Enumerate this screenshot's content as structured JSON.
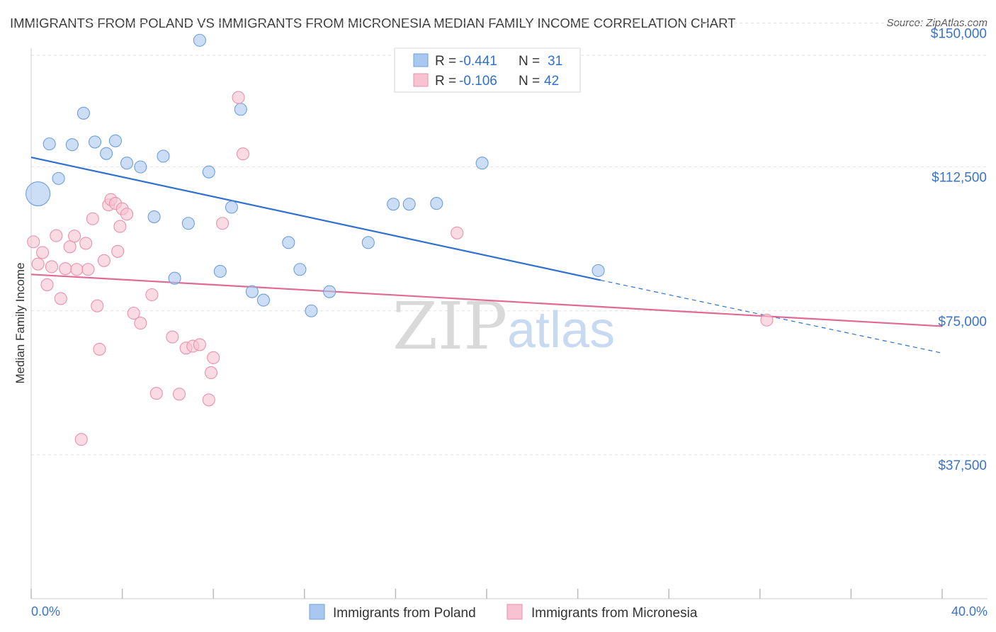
{
  "title": "IMMIGRANTS FROM POLAND VS IMMIGRANTS FROM MICRONESIA MEDIAN FAMILY INCOME CORRELATION CHART",
  "source": "Source: ZipAtlas.com",
  "watermark": {
    "zip": "ZIP",
    "atlas": "atlas"
  },
  "legend_stats": [
    {
      "r_label": "R = ",
      "r_value": "-0.441",
      "n_label": "N = ",
      "n_value": "31"
    },
    {
      "r_label": "R = ",
      "r_value": "-0.106",
      "n_label": "N = ",
      "n_value": "42"
    }
  ],
  "chart_data": {
    "type": "scatter",
    "title": "IMMIGRANTS FROM POLAND VS IMMIGRANTS FROM MICRONESIA MEDIAN FAMILY INCOME CORRELATION CHART",
    "xlabel": "",
    "ylabel": "Median Family Income",
    "xlim": [
      0,
      40
    ],
    "ylim": [
      0,
      156000
    ],
    "x_tick_labels": [
      "0.0%",
      "40.0%"
    ],
    "y_ticks": [
      37500,
      75000,
      112500,
      150000
    ],
    "y_tick_labels": [
      "$37,500",
      "$75,000",
      "$112,500",
      "$150,000"
    ],
    "grid": true,
    "legend_position": "top-center",
    "series": [
      {
        "name": "Immigrants from Poland",
        "color": "#a9c8f0",
        "edge_color": "#6f9fdc",
        "line_color": "#2f70d0",
        "r": -0.441,
        "n": 31,
        "trend": {
          "x0": 0,
          "y0": 115000,
          "x1": 25,
          "y1": 83000,
          "dash_to_x": 40,
          "dash_to_y": 64000
        },
        "points": [
          {
            "x": 0.3,
            "y": 105500,
            "big": true
          },
          {
            "x": 0.8,
            "y": 118500
          },
          {
            "x": 1.2,
            "y": 109500
          },
          {
            "x": 1.8,
            "y": 118300
          },
          {
            "x": 2.3,
            "y": 126500
          },
          {
            "x": 2.8,
            "y": 119000
          },
          {
            "x": 3.3,
            "y": 116000
          },
          {
            "x": 3.7,
            "y": 119300
          },
          {
            "x": 4.2,
            "y": 113500
          },
          {
            "x": 4.8,
            "y": 112500
          },
          {
            "x": 5.4,
            "y": 99500
          },
          {
            "x": 5.8,
            "y": 115300
          },
          {
            "x": 6.3,
            "y": 83500
          },
          {
            "x": 6.9,
            "y": 97800
          },
          {
            "x": 7.4,
            "y": 145500
          },
          {
            "x": 7.8,
            "y": 111200
          },
          {
            "x": 8.3,
            "y": 85300
          },
          {
            "x": 8.8,
            "y": 102000
          },
          {
            "x": 9.2,
            "y": 127500
          },
          {
            "x": 9.7,
            "y": 80000
          },
          {
            "x": 10.2,
            "y": 77800
          },
          {
            "x": 11.3,
            "y": 92800
          },
          {
            "x": 11.8,
            "y": 85800
          },
          {
            "x": 12.3,
            "y": 75000
          },
          {
            "x": 13.1,
            "y": 80000
          },
          {
            "x": 14.8,
            "y": 92800
          },
          {
            "x": 15.9,
            "y": 102800
          },
          {
            "x": 16.6,
            "y": 102800
          },
          {
            "x": 17.8,
            "y": 103000
          },
          {
            "x": 19.8,
            "y": 113500
          },
          {
            "x": 24.9,
            "y": 85500
          }
        ]
      },
      {
        "name": "Immigrants from Micronesia",
        "color": "#f7c3d2",
        "edge_color": "#e892ae",
        "line_color": "#e06a94",
        "r": -0.106,
        "n": 42,
        "trend": {
          "x0": 0,
          "y0": 84500,
          "x1": 40,
          "y1": 71000
        },
        "points": [
          {
            "x": 0.1,
            "y": 93000
          },
          {
            "x": 0.3,
            "y": 87200
          },
          {
            "x": 0.5,
            "y": 90200
          },
          {
            "x": 0.7,
            "y": 81800
          },
          {
            "x": 0.9,
            "y": 86500
          },
          {
            "x": 1.1,
            "y": 94600
          },
          {
            "x": 1.3,
            "y": 78200
          },
          {
            "x": 1.5,
            "y": 86000
          },
          {
            "x": 1.7,
            "y": 91700
          },
          {
            "x": 1.9,
            "y": 94500
          },
          {
            "x": 2.0,
            "y": 85800
          },
          {
            "x": 2.2,
            "y": 41500
          },
          {
            "x": 2.4,
            "y": 92600
          },
          {
            "x": 2.5,
            "y": 85800
          },
          {
            "x": 2.7,
            "y": 99000
          },
          {
            "x": 2.9,
            "y": 76300
          },
          {
            "x": 3.0,
            "y": 65000
          },
          {
            "x": 3.2,
            "y": 88100
          },
          {
            "x": 3.4,
            "y": 102600
          },
          {
            "x": 3.5,
            "y": 104000
          },
          {
            "x": 3.7,
            "y": 103000
          },
          {
            "x": 3.8,
            "y": 90500
          },
          {
            "x": 3.9,
            "y": 97000
          },
          {
            "x": 4.0,
            "y": 101600
          },
          {
            "x": 4.2,
            "y": 100200
          },
          {
            "x": 4.5,
            "y": 74400
          },
          {
            "x": 4.8,
            "y": 71800
          },
          {
            "x": 5.3,
            "y": 79200
          },
          {
            "x": 5.5,
            "y": 53500
          },
          {
            "x": 6.2,
            "y": 68200
          },
          {
            "x": 6.5,
            "y": 53300
          },
          {
            "x": 6.8,
            "y": 65300
          },
          {
            "x": 7.1,
            "y": 65800
          },
          {
            "x": 7.4,
            "y": 66200
          },
          {
            "x": 7.8,
            "y": 51800
          },
          {
            "x": 7.9,
            "y": 58900
          },
          {
            "x": 8.0,
            "y": 62800
          },
          {
            "x": 8.4,
            "y": 97800
          },
          {
            "x": 9.1,
            "y": 130600
          },
          {
            "x": 9.3,
            "y": 115900
          },
          {
            "x": 18.7,
            "y": 95300
          },
          {
            "x": 32.3,
            "y": 72600
          }
        ]
      }
    ]
  }
}
